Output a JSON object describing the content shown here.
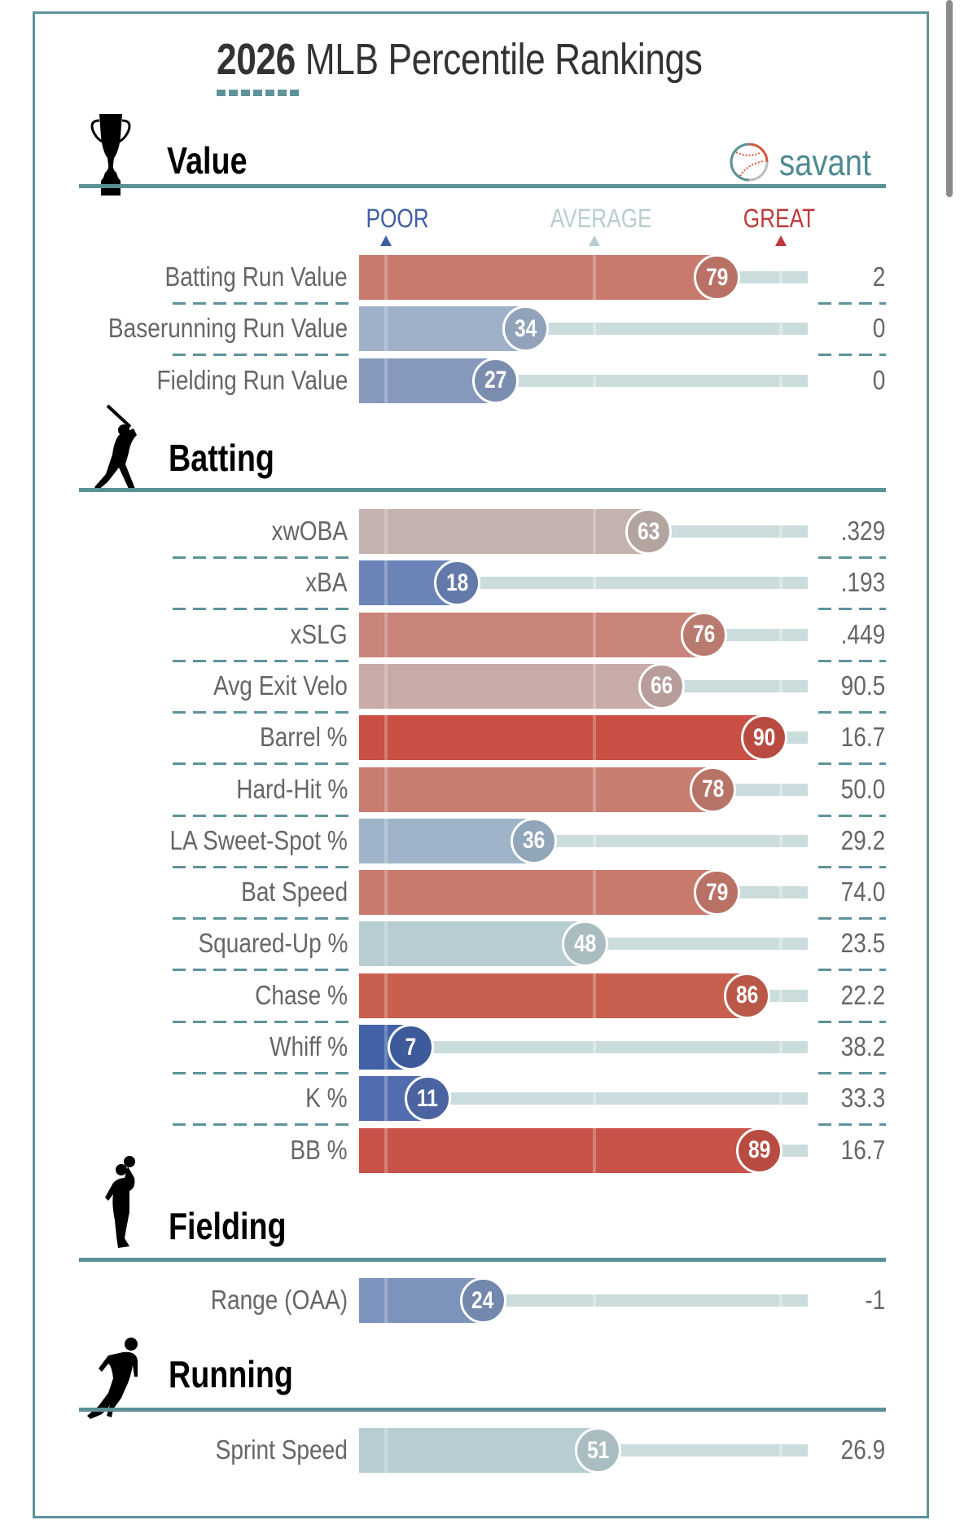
{
  "header": {
    "title_year": "2026",
    "title_rest": " MLB Percentile Rankings",
    "logo_text": "savant"
  },
  "legend": {
    "poor": "POOR",
    "average": "AVERAGE",
    "great": "GREAT",
    "poor_color": "#3f5fa5",
    "average_color": "#b8cdd1",
    "great_color": "#c0383a"
  },
  "colors": {
    "frame": "#5e939b",
    "track": "#cbdcdd",
    "section_line": "#5a9096"
  },
  "sections": [
    {
      "title": "Value",
      "icon": "trophy-icon",
      "rows": [
        {
          "label": "Batting Run Value",
          "percentile": 79,
          "value": "2",
          "color": "#c87b6d"
        },
        {
          "label": "Baserunning Run Value",
          "percentile": 34,
          "value": "0",
          "color": "#9eb1c8"
        },
        {
          "label": "Fielding Run Value",
          "percentile": 27,
          "value": "0",
          "color": "#8699bd"
        }
      ]
    },
    {
      "title": "Batting",
      "icon": "batter-icon",
      "rows": [
        {
          "label": "xwOBA",
          "percentile": 63,
          "value": ".329",
          "color": "#c3b2ae"
        },
        {
          "label": "xBA",
          "percentile": 18,
          "value": ".193",
          "color": "#6b84b8"
        },
        {
          "label": "xSLG",
          "percentile": 76,
          "value": ".449",
          "color": "#c9857a"
        },
        {
          "label": "Avg Exit Velo",
          "percentile": 66,
          "value": "90.5",
          "color": "#c6aba6"
        },
        {
          "label": "Barrel %",
          "percentile": 90,
          "value": "16.7",
          "color": "#c85045"
        },
        {
          "label": "Hard-Hit %",
          "percentile": 78,
          "value": "50.0",
          "color": "#c87d70"
        },
        {
          "label": "LA Sweet-Spot %",
          "percentile": 36,
          "value": "29.2",
          "color": "#9fb4c9"
        },
        {
          "label": "Bat Speed",
          "percentile": 79,
          "value": "74.0",
          "color": "#c87b6d"
        },
        {
          "label": "Squared-Up %",
          "percentile": 48,
          "value": "23.5",
          "color": "#b8cdd1"
        },
        {
          "label": "Chase %",
          "percentile": 86,
          "value": "22.2",
          "color": "#c9604f"
        },
        {
          "label": "Whiff %",
          "percentile": 7,
          "value": "38.2",
          "color": "#4262a7"
        },
        {
          "label": "K %",
          "percentile": 11,
          "value": "33.3",
          "color": "#526daf"
        },
        {
          "label": "BB %",
          "percentile": 89,
          "value": "16.7",
          "color": "#c85348"
        }
      ]
    },
    {
      "title": "Fielding",
      "icon": "fielder-icon",
      "rows": [
        {
          "label": "Range (OAA)",
          "percentile": 24,
          "value": "-1",
          "color": "#7e93bc"
        }
      ]
    },
    {
      "title": "Running",
      "icon": "runner-icon",
      "rows": [
        {
          "label": "Sprint Speed",
          "percentile": 51,
          "value": "26.9",
          "color": "#b8cdd1"
        }
      ]
    }
  ],
  "chart_data": {
    "type": "bar",
    "title": "2026 MLB Percentile Rankings",
    "xlabel": "Percentile",
    "xlim": [
      0,
      100
    ],
    "legend": [
      "POOR",
      "AVERAGE",
      "GREAT"
    ],
    "categories": [
      "Batting Run Value",
      "Baserunning Run Value",
      "Fielding Run Value",
      "xwOBA",
      "xBA",
      "xSLG",
      "Avg Exit Velo",
      "Barrel %",
      "Hard-Hit %",
      "LA Sweet-Spot %",
      "Bat Speed",
      "Squared-Up %",
      "Chase %",
      "Whiff %",
      "K %",
      "BB %",
      "Range (OAA)",
      "Sprint Speed"
    ],
    "values": [
      79,
      34,
      27,
      63,
      18,
      76,
      66,
      90,
      78,
      36,
      79,
      48,
      86,
      7,
      11,
      89,
      24,
      51
    ],
    "stat_values": [
      "2",
      "0",
      "0",
      ".329",
      ".193",
      ".449",
      "90.5",
      "16.7",
      "50.0",
      "29.2",
      "74.0",
      "23.5",
      "22.2",
      "38.2",
      "33.3",
      "16.7",
      "-1",
      "26.9"
    ]
  }
}
